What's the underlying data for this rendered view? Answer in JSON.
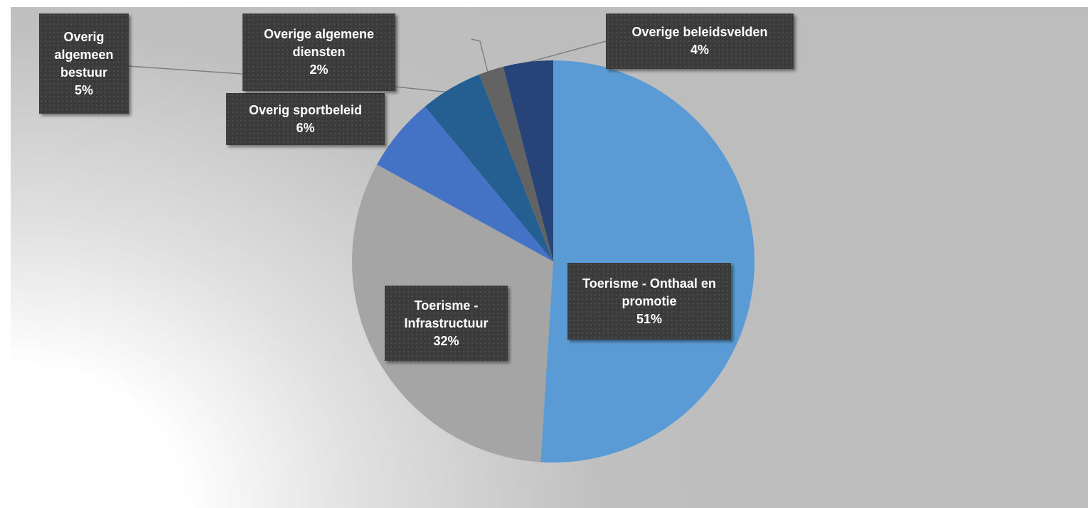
{
  "chart_data": {
    "type": "pie",
    "categories": [
      "Toerisme - Onthaal en promotie",
      "Toerisme - Infrastructuur",
      "Overig sportbeleid",
      "Overig algemeen bestuur",
      "Overige algemene diensten",
      "Overige beleidsvelden"
    ],
    "values": [
      51,
      32,
      6,
      5,
      2,
      4
    ],
    "value_labels": [
      "51%",
      "32%",
      "6%",
      "5%",
      "2%",
      "4%"
    ],
    "colors": [
      "#5b9bd5",
      "#a5a5a5",
      "#4472c4",
      "#255e91",
      "#636363",
      "#264478"
    ]
  }
}
